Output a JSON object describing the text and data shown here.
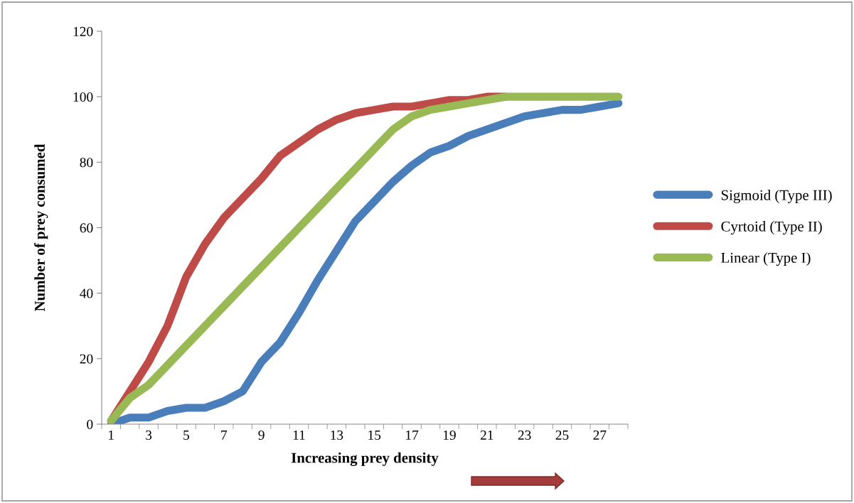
{
  "chart_data": {
    "type": "line",
    "xlabel": "Increasing prey density",
    "ylabel": "Number of prey consumed",
    "categories": [
      "1",
      null,
      "3",
      null,
      "5",
      null,
      "7",
      null,
      "9",
      null,
      "11",
      null,
      "13",
      null,
      "15",
      null,
      "17",
      null,
      "19",
      null,
      "21",
      null,
      "23",
      null,
      "25",
      null,
      "27",
      null
    ],
    "series": [
      {
        "name": "Sigmoid (Type III)",
        "color": "#4a7ebb",
        "values": [
          0,
          2,
          2,
          4,
          5,
          5,
          7,
          10,
          19,
          25,
          34,
          44,
          53,
          62,
          68,
          74,
          79,
          83,
          85,
          88,
          90,
          92,
          94,
          95,
          96,
          96,
          97,
          98
        ]
      },
      {
        "name": "Cyrtoid (Type II)",
        "color": "#be4b48",
        "values": [
          1,
          10,
          19,
          30,
          45,
          55,
          63,
          69,
          75,
          82,
          86,
          90,
          93,
          95,
          96,
          97,
          97,
          98,
          99,
          99,
          100,
          100,
          null,
          null,
          null,
          null,
          null,
          null
        ]
      },
      {
        "name": "Linear (Type I)",
        "color": "#98b954",
        "values": [
          1,
          8,
          12,
          18,
          24,
          30,
          36,
          42,
          48,
          54,
          60,
          66,
          72,
          78,
          84,
          90,
          94,
          96,
          97,
          98,
          99,
          100,
          100,
          100,
          100,
          100,
          100,
          100
        ]
      }
    ],
    "ylim": [
      0,
      120
    ],
    "yticks": [
      0,
      20,
      40,
      60,
      80,
      100,
      120
    ],
    "grid": false,
    "legend": "right",
    "line_style": "solid",
    "marker": "none"
  }
}
